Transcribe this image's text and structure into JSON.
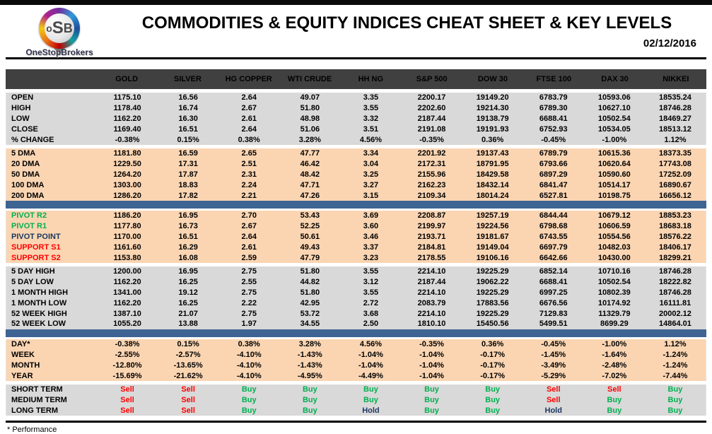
{
  "header": {
    "logo_o": "o",
    "logo_s": "S",
    "logo_b": "B",
    "brand": "OneStopBrokers",
    "title": "COMMODITIES & EQUITY INDICES CHEAT SHEET & KEY LEVELS",
    "date": "02/12/2016"
  },
  "colors": {
    "header_bg": "#404040",
    "peach": "#fbd5b2",
    "gray": "#d9d9d9",
    "divider_blue": "#3e6493",
    "pivot_green": "#00b050",
    "pivot_navy": "#17375d",
    "support_red": "#ff0000",
    "signal": {
      "Buy": "#00b050",
      "Sell": "#ff0000",
      "Hold": "#1f3864"
    }
  },
  "table": {
    "columns": [
      "GOLD",
      "SILVER",
      "HG COPPER",
      "WTI CRUDE",
      "HH NG",
      "S&P 500",
      "DOW 30",
      "FTSE 100",
      "DAX 30",
      "NIKKEI"
    ],
    "sections": [
      {
        "id": "ohlc",
        "theme": "gray",
        "type": "value",
        "bar_after": false,
        "rows": [
          {
            "label": "OPEN",
            "values": [
              "1175.10",
              "16.56",
              "2.64",
              "49.07",
              "3.35",
              "2200.17",
              "19149.20",
              "6783.79",
              "10593.06",
              "18535.24"
            ]
          },
          {
            "label": "HIGH",
            "values": [
              "1178.40",
              "16.74",
              "2.67",
              "51.80",
              "3.55",
              "2202.60",
              "19214.30",
              "6789.30",
              "10627.10",
              "18746.28"
            ]
          },
          {
            "label": "LOW",
            "values": [
              "1162.20",
              "16.30",
              "2.61",
              "48.98",
              "3.32",
              "2187.44",
              "19138.79",
              "6688.41",
              "10502.54",
              "18469.27"
            ]
          },
          {
            "label": "CLOSE",
            "values": [
              "1169.40",
              "16.51",
              "2.64",
              "51.06",
              "3.51",
              "2191.08",
              "19191.93",
              "6752.93",
              "10534.05",
              "18513.12"
            ]
          },
          {
            "label": "% CHANGE",
            "values": [
              "-0.38%",
              "0.15%",
              "0.38%",
              "3.28%",
              "4.56%",
              "-0.35%",
              "0.36%",
              "-0.45%",
              "-1.00%",
              "1.12%"
            ]
          }
        ]
      },
      {
        "id": "dma",
        "theme": "peach",
        "type": "value",
        "bar_after": true,
        "rows": [
          {
            "label": "5 DMA",
            "values": [
              "1181.80",
              "16.59",
              "2.65",
              "47.77",
              "3.34",
              "2201.92",
              "19137.43",
              "6789.79",
              "10615.36",
              "18373.35"
            ]
          },
          {
            "label": "20 DMA",
            "values": [
              "1229.50",
              "17.31",
              "2.51",
              "46.42",
              "3.04",
              "2172.31",
              "18791.95",
              "6793.66",
              "10620.64",
              "17743.08"
            ]
          },
          {
            "label": "50 DMA",
            "values": [
              "1264.20",
              "17.87",
              "2.31",
              "48.42",
              "3.25",
              "2155.96",
              "18429.58",
              "6897.29",
              "10590.60",
              "17252.09"
            ]
          },
          {
            "label": "100 DMA",
            "values": [
              "1303.00",
              "18.83",
              "2.24",
              "47.71",
              "3.27",
              "2162.23",
              "18432.14",
              "6841.47",
              "10514.17",
              "16890.67"
            ]
          },
          {
            "label": "200 DMA",
            "values": [
              "1286.20",
              "17.82",
              "2.21",
              "47.26",
              "3.15",
              "2109.34",
              "18014.24",
              "6527.81",
              "10198.75",
              "16656.12"
            ]
          }
        ]
      },
      {
        "id": "pivots",
        "theme": "peach",
        "type": "value",
        "bar_after": false,
        "rows": [
          {
            "label": "PIVOT R2",
            "label_color": "#00b050",
            "values": [
              "1186.20",
              "16.95",
              "2.70",
              "53.43",
              "3.69",
              "2208.87",
              "19257.19",
              "6844.44",
              "10679.12",
              "18853.23"
            ]
          },
          {
            "label": "PIVOT R1",
            "label_color": "#00b050",
            "values": [
              "1177.80",
              "16.73",
              "2.67",
              "52.25",
              "3.60",
              "2199.97",
              "19224.56",
              "6798.68",
              "10606.59",
              "18683.18"
            ]
          },
          {
            "label": "PIVOT POINT",
            "label_color": "#17375d",
            "values": [
              "1170.00",
              "16.51",
              "2.64",
              "50.61",
              "3.46",
              "2193.71",
              "19181.67",
              "6743.55",
              "10554.56",
              "18576.22"
            ]
          },
          {
            "label": "SUPPORT S1",
            "label_color": "#ff0000",
            "values": [
              "1161.60",
              "16.29",
              "2.61",
              "49.43",
              "3.37",
              "2184.81",
              "19149.04",
              "6697.79",
              "10482.03",
              "18406.17"
            ]
          },
          {
            "label": "SUPPORT S2",
            "label_color": "#ff0000",
            "values": [
              "1153.80",
              "16.08",
              "2.59",
              "47.79",
              "3.23",
              "2178.55",
              "19106.16",
              "6642.66",
              "10430.00",
              "18299.21"
            ]
          }
        ]
      },
      {
        "id": "ranges",
        "theme": "gray",
        "type": "value",
        "bar_after": true,
        "rows": [
          {
            "label": "5 DAY HIGH",
            "values": [
              "1200.00",
              "16.95",
              "2.75",
              "51.80",
              "3.55",
              "2214.10",
              "19225.29",
              "6852.14",
              "10710.16",
              "18746.28"
            ]
          },
          {
            "label": "5 DAY LOW",
            "values": [
              "1162.20",
              "16.25",
              "2.55",
              "44.82",
              "3.12",
              "2187.44",
              "19062.22",
              "6688.41",
              "10502.54",
              "18222.82"
            ]
          },
          {
            "label": "1 MONTH HIGH",
            "values": [
              "1341.00",
              "19.12",
              "2.75",
              "51.80",
              "3.55",
              "2214.10",
              "19225.29",
              "6997.25",
              "10802.39",
              "18746.28"
            ]
          },
          {
            "label": "1 MONTH LOW",
            "values": [
              "1162.20",
              "16.25",
              "2.22",
              "42.95",
              "2.72",
              "2083.79",
              "17883.56",
              "6676.56",
              "10174.92",
              "16111.81"
            ]
          },
          {
            "label": "52 WEEK HIGH",
            "values": [
              "1387.10",
              "21.07",
              "2.75",
              "53.72",
              "3.68",
              "2214.10",
              "19225.29",
              "7129.83",
              "11329.79",
              "20002.12"
            ]
          },
          {
            "label": "52 WEEK LOW",
            "values": [
              "1055.20",
              "13.88",
              "1.97",
              "34.55",
              "2.50",
              "1810.10",
              "15450.56",
              "5499.51",
              "8699.29",
              "14864.01"
            ]
          }
        ]
      },
      {
        "id": "performance",
        "theme": "peach",
        "type": "value",
        "bar_after": false,
        "rows": [
          {
            "label": "DAY*",
            "values": [
              "-0.38%",
              "0.15%",
              "0.38%",
              "3.28%",
              "4.56%",
              "-0.35%",
              "0.36%",
              "-0.45%",
              "-1.00%",
              "1.12%"
            ]
          },
          {
            "label": "WEEK",
            "values": [
              "-2.55%",
              "-2.57%",
              "-4.10%",
              "-1.43%",
              "-1.04%",
              "-1.04%",
              "-0.17%",
              "-1.45%",
              "-1.64%",
              "-1.24%"
            ]
          },
          {
            "label": "MONTH",
            "values": [
              "-12.80%",
              "-13.65%",
              "-4.10%",
              "-1.43%",
              "-1.04%",
              "-1.04%",
              "-0.17%",
              "-3.49%",
              "-2.48%",
              "-1.24%"
            ]
          },
          {
            "label": "YEAR",
            "values": [
              "-15.69%",
              "-21.62%",
              "-4.10%",
              "-4.95%",
              "-4.49%",
              "-1.04%",
              "-0.17%",
              "-5.29%",
              "-7.02%",
              "-7.44%"
            ]
          }
        ]
      },
      {
        "id": "signals",
        "theme": "gray",
        "type": "signal",
        "bar_after": false,
        "rows": [
          {
            "label": "SHORT TERM",
            "values": [
              "Sell",
              "Sell",
              "Buy",
              "Buy",
              "Buy",
              "Buy",
              "Buy",
              "Sell",
              "Sell",
              "Buy"
            ]
          },
          {
            "label": "MEDIUM TERM",
            "values": [
              "Sell",
              "Sell",
              "Buy",
              "Buy",
              "Buy",
              "Buy",
              "Buy",
              "Sell",
              "Buy",
              "Buy"
            ]
          },
          {
            "label": "LONG TERM",
            "values": [
              "Sell",
              "Sell",
              "Buy",
              "Buy",
              "Hold",
              "Buy",
              "Buy",
              "Hold",
              "Buy",
              "Buy"
            ]
          }
        ]
      }
    ]
  },
  "footnote": "* Performance"
}
